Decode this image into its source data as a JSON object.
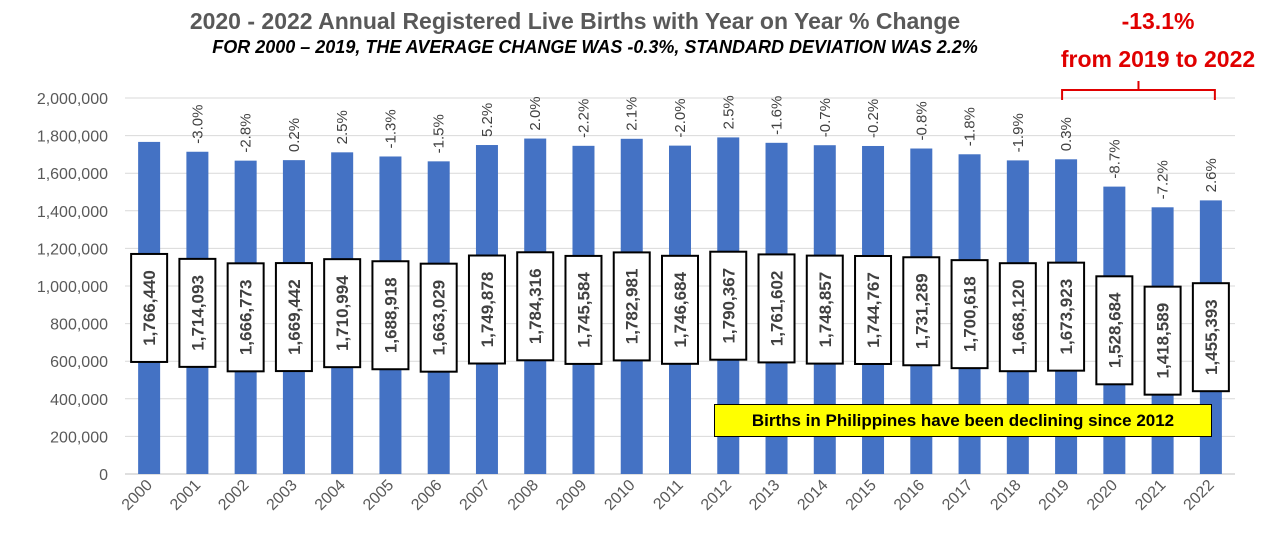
{
  "title": "2020 - 2022 Annual Registered Live Births with Year on Year % Change",
  "subtitle": "FOR 2000 – 2019, THE AVERAGE CHANGE WAS -0.3%, STANDARD DEVIATION WAS 2.2%",
  "callout": {
    "percent": "-13.1%",
    "text": "from 2019 to 2022"
  },
  "note": "Births in Philippines have been declining since 2012",
  "colors": {
    "bar": "#4472c4",
    "callout": "#e00000",
    "note_bg": "#ffff00",
    "grid": "#d9d9d9"
  },
  "chart_data": {
    "type": "bar",
    "title": "2020 - 2022 Annual Registered Live Births with Year on Year % Change",
    "categories": [
      "2000",
      "2001",
      "2002",
      "2003",
      "2004",
      "2005",
      "2006",
      "2007",
      "2008",
      "2009",
      "2010",
      "2011",
      "2012",
      "2013",
      "2014",
      "2015",
      "2016",
      "2017",
      "2018",
      "2019",
      "2020",
      "2021",
      "2022"
    ],
    "values": [
      1766440,
      1714093,
      1666773,
      1669442,
      1710994,
      1688918,
      1663029,
      1749878,
      1784316,
      1745584,
      1782981,
      1746684,
      1790367,
      1761602,
      1748857,
      1744767,
      1731289,
      1700618,
      1668120,
      1673923,
      1528684,
      1418589,
      1455393
    ],
    "value_labels": [
      "1,766,440",
      "1,714,093",
      "1,666,773",
      "1,669,442",
      "1,710,994",
      "1,688,918",
      "1,663,029",
      "1,749,878",
      "1,784,316",
      "1,745,584",
      "1,782,981",
      "1,746,684",
      "1,790,367",
      "1,761,602",
      "1,748,857",
      "1,744,767",
      "1,731,289",
      "1,700,618",
      "1,668,120",
      "1,673,923",
      "1,528,684",
      "1,418,589",
      "1,455,393"
    ],
    "pct_change_labels": [
      "",
      "-3.0%",
      "-2.8%",
      "0.2%",
      "2.5%",
      "-1.3%",
      "-1.5%",
      "5.2%",
      "2.0%",
      "-2.2%",
      "2.1%",
      "-2.0%",
      "2.5%",
      "-1.6%",
      "-0.7%",
      "-0.2%",
      "-0.8%",
      "-1.8%",
      "-1.9%",
      "0.3%",
      "-8.7%",
      "-7.2%",
      "2.6%"
    ],
    "ylim": [
      0,
      2000000
    ],
    "yticks": [
      0,
      200000,
      400000,
      600000,
      800000,
      1000000,
      1200000,
      1400000,
      1600000,
      1800000,
      2000000
    ],
    "ytick_labels": [
      "0",
      "200,000",
      "400,000",
      "600,000",
      "800,000",
      "1,000,000",
      "1,200,000",
      "1,400,000",
      "1,600,000",
      "1,800,000",
      "2,000,000"
    ],
    "grid": true,
    "legend": "none",
    "xlabel": "",
    "ylabel": ""
  }
}
